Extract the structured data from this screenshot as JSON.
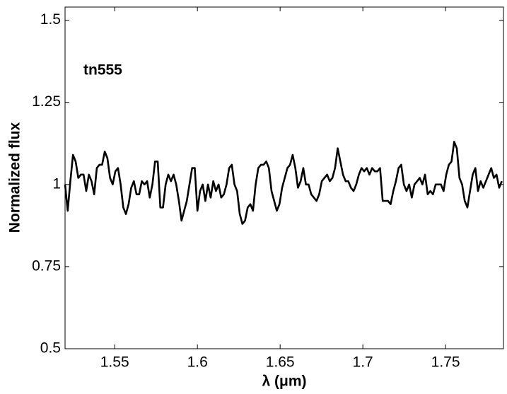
{
  "chart_data": {
    "type": "line",
    "xlabel": "λ (μm)",
    "ylabel": "Normalized flux",
    "annotation": "tn555",
    "color": "#000000",
    "grid": false,
    "xlim": [
      1.52,
      1.785
    ],
    "ylim": [
      0.5,
      1.54
    ],
    "xticks": [
      1.55,
      1.6,
      1.65,
      1.7,
      1.75
    ],
    "yticks": [
      0.5,
      0.75,
      1,
      1.25,
      1.5
    ],
    "x": [
      1.52,
      1.5216,
      1.5232,
      1.5248,
      1.5264,
      1.528,
      1.5296,
      1.5312,
      1.5328,
      1.5344,
      1.536,
      1.5376,
      1.5392,
      1.5408,
      1.5424,
      1.544,
      1.5456,
      1.5472,
      1.5488,
      1.5504,
      1.552,
      1.5536,
      1.5552,
      1.5568,
      1.5584,
      1.56,
      1.5616,
      1.5632,
      1.5648,
      1.5664,
      1.568,
      1.5696,
      1.5712,
      1.5728,
      1.5744,
      1.576,
      1.5776,
      1.5792,
      1.5808,
      1.5824,
      1.584,
      1.5856,
      1.5872,
      1.5888,
      1.5904,
      1.592,
      1.5936,
      1.5952,
      1.5968,
      1.5984,
      1.6,
      1.6016,
      1.6032,
      1.6048,
      1.6064,
      1.608,
      1.6096,
      1.6112,
      1.6128,
      1.6144,
      1.616,
      1.6176,
      1.6192,
      1.6208,
      1.6224,
      1.624,
      1.6256,
      1.6272,
      1.6288,
      1.6304,
      1.632,
      1.6336,
      1.6352,
      1.6368,
      1.6384,
      1.64,
      1.6416,
      1.6432,
      1.6448,
      1.6464,
      1.648,
      1.6496,
      1.6512,
      1.6528,
      1.6544,
      1.656,
      1.6576,
      1.6592,
      1.6608,
      1.6624,
      1.664,
      1.6656,
      1.6672,
      1.6688,
      1.6704,
      1.672,
      1.6736,
      1.6752,
      1.6768,
      1.6784,
      1.68,
      1.6816,
      1.6832,
      1.6848,
      1.6864,
      1.688,
      1.6896,
      1.6912,
      1.6928,
      1.6944,
      1.696,
      1.6976,
      1.6992,
      1.7008,
      1.7024,
      1.704,
      1.7056,
      1.7072,
      1.7088,
      1.7104,
      1.712,
      1.7136,
      1.7152,
      1.7168,
      1.7184,
      1.72,
      1.7216,
      1.7232,
      1.7248,
      1.7264,
      1.728,
      1.7296,
      1.7312,
      1.7328,
      1.7344,
      1.736,
      1.7376,
      1.7392,
      1.7408,
      1.7424,
      1.744,
      1.7456,
      1.7472,
      1.7488,
      1.7504,
      1.752,
      1.7536,
      1.7552,
      1.7568,
      1.7584,
      1.76,
      1.7616,
      1.7632,
      1.7648,
      1.7664,
      1.768,
      1.7696,
      1.7712,
      1.7728,
      1.7744,
      1.776,
      1.7776,
      1.7792,
      1.7808,
      1.7824,
      1.784
    ],
    "values": [
      1.0,
      0.92,
      1.01,
      1.09,
      1.07,
      1.02,
      1.03,
      1.03,
      0.98,
      1.03,
      1.01,
      0.97,
      1.05,
      1.06,
      1.06,
      1.1,
      1.08,
      1.02,
      1.0,
      1.04,
      1.05,
      1.0,
      0.93,
      0.91,
      0.94,
      0.99,
      1.01,
      0.97,
      0.97,
      1.01,
      1.0,
      1.01,
      0.96,
      1.0,
      1.07,
      1.07,
      0.93,
      0.93,
      1.0,
      1.03,
      1.01,
      1.03,
      1.0,
      0.95,
      0.89,
      0.92,
      0.95,
      1.0,
      1.05,
      1.05,
      0.92,
      0.98,
      1.0,
      0.95,
      1.0,
      0.96,
      1.01,
      0.98,
      1.0,
      0.96,
      0.97,
      1.0,
      1.05,
      1.06,
      1.0,
      0.98,
      0.91,
      0.88,
      0.89,
      0.93,
      0.94,
      0.92,
      1.0,
      1.05,
      1.06,
      1.06,
      1.07,
      1.05,
      0.98,
      0.95,
      0.92,
      0.94,
      0.99,
      1.02,
      1.05,
      1.06,
      1.09,
      1.05,
      0.99,
      1.01,
      1.05,
      1.0,
      1.0,
      0.97,
      0.96,
      0.95,
      0.97,
      1.01,
      1.02,
      1.03,
      1.01,
      1.02,
      1.05,
      1.11,
      1.07,
      1.03,
      1.01,
      1.01,
      0.99,
      0.98,
      1.0,
      1.03,
      1.05,
      1.04,
      1.05,
      1.03,
      1.05,
      1.04,
      1.04,
      1.05,
      0.95,
      0.95,
      0.95,
      0.94,
      0.98,
      1.01,
      1.05,
      1.06,
      1.0,
      0.98,
      1.0,
      0.96,
      1.0,
      1.01,
      1.02,
      1.0,
      1.03,
      0.97,
      0.98,
      0.97,
      1.0,
      1.0,
      1.0,
      0.98,
      1.03,
      1.06,
      1.07,
      1.13,
      1.11,
      1.02,
      1.0,
      0.95,
      0.93,
      0.98,
      1.03,
      1.05,
      0.98,
      1.01,
      0.99,
      1.01,
      1.03,
      1.05,
      1.02,
      1.03,
      0.99,
      1.01
    ]
  }
}
